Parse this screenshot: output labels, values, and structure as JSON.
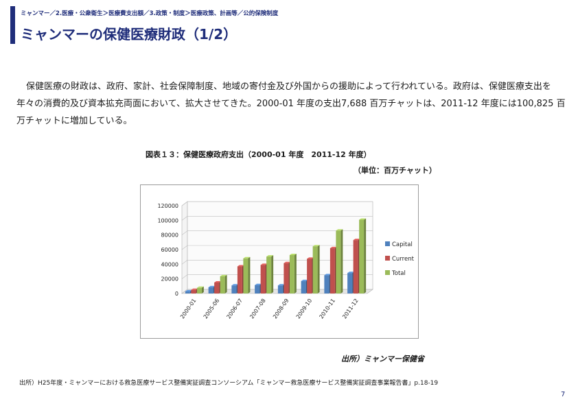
{
  "header": {
    "breadcrumb": "ミャンマー／2.医療・公衆衛生＞医療費支出額／3.政策・制度＞医療政策、計画等／公的保険制度",
    "title": "ミャンマーの保健医療財政（1/2）"
  },
  "body": {
    "paragraph": "保健医療の財政は、政府、家計、社会保障制度、地域の寄付金及び外国からの援助によって行われている。政府は、保健医療支出を年々の消費的及び資本拡充両面において、拡大させてきた。2000-01 年度の支出7,688 百万チャットは、2011-12 年度には100,825 百万チャットに増加している。"
  },
  "figure": {
    "caption": "図表１３：保健医療政府支出（2000-01 年度　2011-12 年度）",
    "unit": "（単位：百万チャット）",
    "source": "出所）ミャンマー保健省"
  },
  "chart_data": {
    "type": "bar",
    "categories": [
      "2000-01",
      "2005-06",
      "2006-07",
      "2007-08",
      "2008-09",
      "2009-10",
      "2010-11",
      "2011-12"
    ],
    "series": [
      {
        "name": "Capital",
        "color": "#4f81bd",
        "values": [
          2800,
          8500,
          11000,
          11500,
          11000,
          17000,
          25000,
          28000
        ]
      },
      {
        "name": "Current",
        "color": "#c0504d",
        "values": [
          4900,
          15000,
          37000,
          39000,
          41500,
          47500,
          62000,
          73000
        ]
      },
      {
        "name": "Total",
        "color": "#9bbb59",
        "values": [
          7688,
          23500,
          48000,
          50500,
          52500,
          64500,
          86000,
          100825
        ]
      }
    ],
    "ylim": [
      0,
      120000
    ],
    "yticks": [
      0,
      20000,
      40000,
      60000,
      80000,
      100000,
      120000
    ],
    "legend_position": "right",
    "grid": true,
    "style": "3d"
  },
  "footer": {
    "footnote": "出所）H25年度・ミャンマーにおける救急医療サービス整備実証調査コンソーシアム「ミャンマー救急医療サービス整備実証調査事業報告書」p.18-19",
    "page_number": "7"
  }
}
